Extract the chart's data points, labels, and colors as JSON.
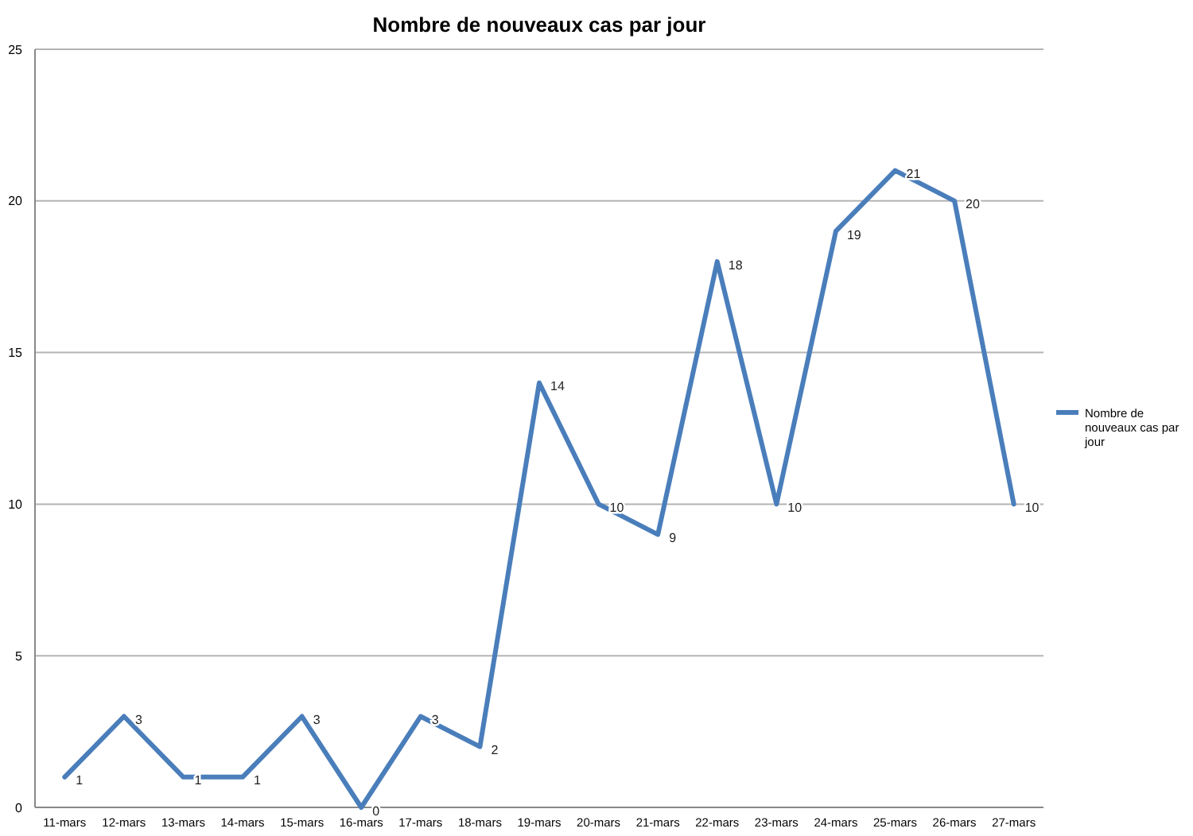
{
  "chart_data": {
    "type": "line",
    "title": "Nombre de nouveaux cas par jour",
    "categories": [
      "11-mars",
      "12-mars",
      "13-mars",
      "14-mars",
      "15-mars",
      "16-mars",
      "17-mars",
      "18-mars",
      "19-mars",
      "20-mars",
      "21-mars",
      "22-mars",
      "23-mars",
      "24-mars",
      "25-mars",
      "26-mars",
      "27-mars"
    ],
    "series": [
      {
        "name": "Nombre de nouveaux cas par jour",
        "color": "#4a7ebb",
        "values": [
          1,
          3,
          1,
          1,
          3,
          0,
          3,
          2,
          14,
          10,
          9,
          18,
          10,
          19,
          21,
          20,
          10
        ]
      }
    ],
    "ylim": [
      0,
      25
    ],
    "yticks": [
      0,
      5,
      10,
      15,
      20,
      25
    ],
    "grid": "y",
    "legend": "right",
    "data_labels": true,
    "marker": "none",
    "line_style": "solid"
  }
}
